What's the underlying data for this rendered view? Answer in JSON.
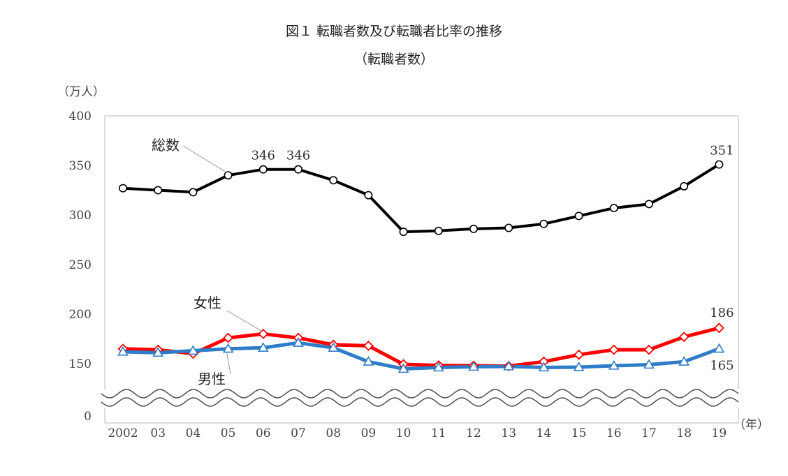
{
  "title": "図１ 転職者数及び転職者比率の推移",
  "subtitle": "（転職者数）",
  "chart_data": {
    "type": "line",
    "title": "図１ 転職者数及び転職者比率の推移",
    "subtitle": "（転職者数）",
    "ylabel": "（万人）",
    "xlabel": "（年）",
    "ylim": [
      0,
      400
    ],
    "yticks": [
      "400",
      "350",
      "300",
      "250",
      "200",
      "150",
      "0"
    ],
    "axis_break": "between 0 and 150 (wavy break marks)",
    "categories": [
      "2002",
      "03",
      "04",
      "05",
      "06",
      "07",
      "08",
      "09",
      "10",
      "11",
      "12",
      "13",
      "14",
      "15",
      "16",
      "17",
      "18",
      "19"
    ],
    "series": [
      {
        "name": "総数",
        "color": "#000000",
        "marker": "circle",
        "values": [
          327,
          325,
          323,
          340,
          346,
          346,
          335,
          320,
          283,
          284,
          286,
          287,
          291,
          299,
          307,
          311,
          329,
          351
        ]
      },
      {
        "name": "女性",
        "color": "#ff0000",
        "marker": "diamond",
        "values": [
          165,
          164,
          160,
          176,
          180,
          176,
          169,
          168,
          148,
          145,
          144,
          143,
          152,
          159,
          164,
          164,
          177,
          186
        ]
      },
      {
        "name": "男性",
        "color": "#2f7dc8",
        "marker": "triangle",
        "values": [
          162,
          161,
          163,
          165,
          166,
          171,
          166,
          152,
          135,
          139,
          141,
          142,
          139,
          140,
          144,
          147,
          152,
          165
        ]
      }
    ],
    "data_labels": [
      {
        "series": "総数",
        "category": "06",
        "text": "346"
      },
      {
        "series": "総数",
        "category": "07",
        "text": "346"
      },
      {
        "series": "総数",
        "category": "19",
        "text": "351"
      },
      {
        "series": "女性",
        "category": "19",
        "text": "186"
      },
      {
        "series": "男性",
        "category": "19",
        "text": "165"
      }
    ],
    "grid": false,
    "legend": "none"
  }
}
